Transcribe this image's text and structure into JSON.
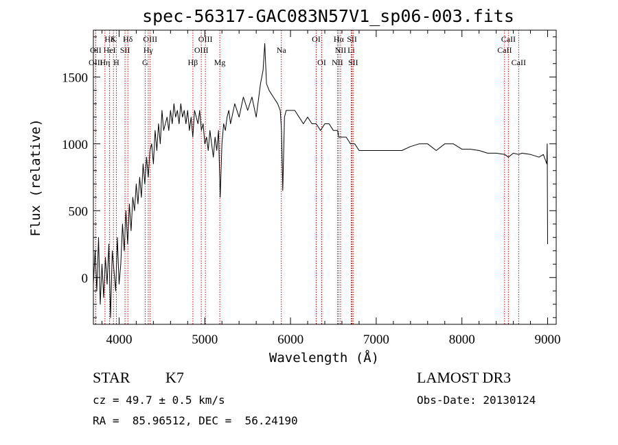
{
  "chart_data": {
    "type": "line",
    "title": "spec-56317-GAC083N57V1_sp06-003.fits",
    "xlabel": "Wavelength (Å)",
    "ylabel": "Flux (relative)",
    "xlim": [
      3700,
      9100
    ],
    "ylim": [
      -350,
      1850
    ],
    "xticks": [
      4000,
      5000,
      6000,
      7000,
      8000,
      9000
    ],
    "xtick_labels": [
      "4000",
      "5000",
      "6000",
      "7000",
      "8000",
      "9000"
    ],
    "yticks": [
      0,
      500,
      1000,
      1500
    ],
    "ytick_labels": [
      "0",
      "500",
      "1000",
      "1500"
    ],
    "series": [
      {
        "name": "spectrum",
        "x": [
          3700,
          3720,
          3740,
          3760,
          3780,
          3800,
          3820,
          3840,
          3860,
          3880,
          3900,
          3920,
          3940,
          3960,
          3980,
          4000,
          4020,
          4040,
          4060,
          4080,
          4100,
          4120,
          4140,
          4160,
          4180,
          4200,
          4220,
          4240,
          4260,
          4280,
          4300,
          4320,
          4340,
          4360,
          4380,
          4400,
          4420,
          4440,
          4460,
          4480,
          4500,
          4520,
          4540,
          4560,
          4580,
          4600,
          4620,
          4640,
          4660,
          4680,
          4700,
          4720,
          4740,
          4760,
          4780,
          4800,
          4820,
          4840,
          4860,
          4880,
          4900,
          4920,
          4940,
          4960,
          4980,
          5000,
          5020,
          5040,
          5060,
          5080,
          5100,
          5120,
          5140,
          5160,
          5180,
          5200,
          5220,
          5240,
          5260,
          5280,
          5300,
          5350,
          5400,
          5450,
          5500,
          5550,
          5600,
          5650,
          5680,
          5700,
          5720,
          5750,
          5800,
          5850,
          5880,
          5895,
          5910,
          5930,
          5950,
          6000,
          6050,
          6100,
          6150,
          6200,
          6250,
          6300,
          6350,
          6400,
          6450,
          6500,
          6550,
          6563,
          6600,
          6650,
          6700,
          6750,
          6800,
          6850,
          6900,
          6950,
          7000,
          7100,
          7200,
          7300,
          7400,
          7500,
          7600,
          7700,
          7800,
          7900,
          8000,
          8100,
          8200,
          8300,
          8400,
          8500,
          8542,
          8600,
          8662,
          8700,
          8800,
          8900,
          8950,
          8990,
          8995,
          9000
        ],
        "y": [
          -50,
          200,
          -100,
          300,
          -200,
          100,
          -150,
          150,
          -50,
          250,
          -300,
          200,
          50,
          -100,
          300,
          -50,
          100,
          400,
          200,
          500,
          250,
          550,
          350,
          600,
          500,
          700,
          550,
          750,
          600,
          850,
          700,
          900,
          750,
          950,
          1000,
          850,
          1100,
          950,
          1150,
          1000,
          1250,
          1100,
          1150,
          1200,
          1100,
          1250,
          1150,
          1300,
          1200,
          1250,
          1150,
          1300,
          1200,
          1250,
          1150,
          1250,
          1100,
          1200,
          1050,
          1250,
          1200,
          1150,
          1250,
          1100,
          1150,
          1000,
          1050,
          950,
          1100,
          1000,
          900,
          1050,
          950,
          1100,
          600,
          1000,
          1150,
          1100,
          1200,
          1250,
          1150,
          1300,
          1200,
          1350,
          1250,
          1350,
          1200,
          1450,
          1550,
          1750,
          1450,
          1400,
          1350,
          1300,
          1250,
          1100,
          650,
          1200,
          1250,
          1250,
          1250,
          1200,
          1150,
          1200,
          1150,
          1150,
          1100,
          1150,
          1150,
          1100,
          1100,
          1050,
          1050,
          1050,
          1000,
          1000,
          950,
          950,
          950,
          950,
          950,
          950,
          950,
          950,
          980,
          1000,
          1000,
          950,
          1000,
          1000,
          960,
          960,
          950,
          930,
          930,
          920,
          900,
          930,
          920,
          930,
          920,
          900,
          920,
          850,
          1000,
          250
        ]
      }
    ],
    "lines": [
      {
        "name": "Hδ",
        "x": 3889,
        "row": 0
      },
      {
        "name": "K",
        "x": 3934,
        "row": 0
      },
      {
        "name": "Hδ",
        "x": 4102,
        "row": 0
      },
      {
        "name": "OIII",
        "x": 4363,
        "row": 0
      },
      {
        "name": "OIII",
        "x": 5007,
        "row": 0
      },
      {
        "name": "OI",
        "x": 6300,
        "row": 0
      },
      {
        "name": "Hα",
        "x": 6563,
        "row": 0
      },
      {
        "name": "SII",
        "x": 6717,
        "row": 0
      },
      {
        "name": "CaII",
        "x": 8542,
        "row": 0
      },
      {
        "name": "OII",
        "x": 3727,
        "row": 1
      },
      {
        "name": "HeI",
        "x": 3889,
        "row": 1
      },
      {
        "name": "SII",
        "x": 4069,
        "row": 1
      },
      {
        "name": "Hγ",
        "x": 4340,
        "row": 1
      },
      {
        "name": "OIII",
        "x": 4959,
        "row": 1
      },
      {
        "name": "Na",
        "x": 5893,
        "row": 1
      },
      {
        "name": "NII",
        "x": 6584,
        "row": 1
      },
      {
        "name": "Li",
        "x": 6708,
        "row": 1
      },
      {
        "name": "CaII",
        "x": 8498,
        "row": 1
      },
      {
        "name": "OIII",
        "x": 3727,
        "row": 2
      },
      {
        "name": "Hη",
        "x": 3835,
        "row": 2
      },
      {
        "name": "H",
        "x": 3968,
        "row": 2
      },
      {
        "name": "G",
        "x": 4304,
        "row": 2
      },
      {
        "name": "Hβ",
        "x": 4861,
        "row": 2
      },
      {
        "name": "Mg",
        "x": 5175,
        "row": 2
      },
      {
        "name": "OI",
        "x": 6364,
        "row": 2
      },
      {
        "name": "NII",
        "x": 6548,
        "row": 2
      },
      {
        "name": "SII",
        "x": 6731,
        "row": 2
      },
      {
        "name": "CaII",
        "x": 8662,
        "row": 2
      }
    ]
  },
  "info": {
    "class_label": "STAR",
    "subclass_label": "K7",
    "survey": "LAMOST DR3",
    "redshift": "cz = 49.7 ± 0.5 km/s",
    "obs_date": "Obs-Date: 20130124",
    "coords": "RA =  85.96512, DEC =  56.24190"
  },
  "colors": {
    "line_marker": "#cc0000",
    "spectrum": "#000000",
    "axes": "#000000"
  }
}
